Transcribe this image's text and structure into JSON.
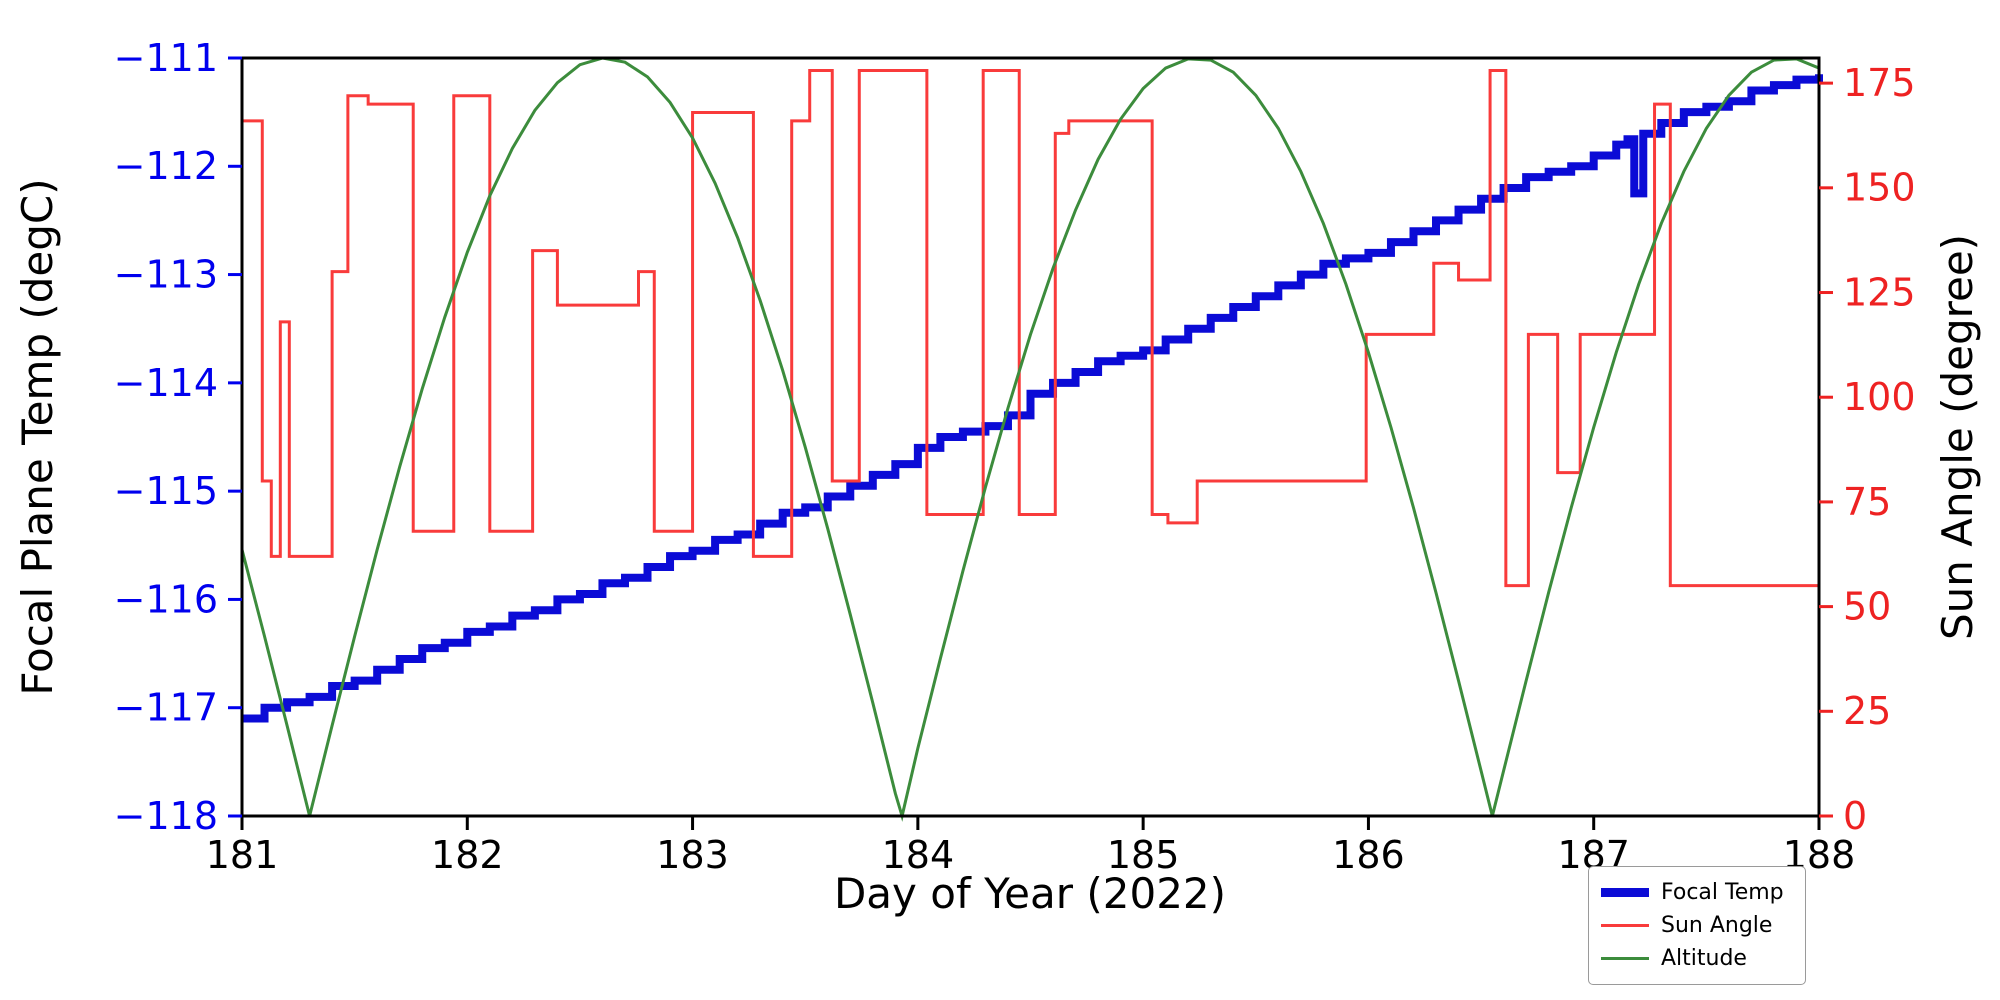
{
  "chart_data": {
    "type": "line",
    "title": "",
    "xlabel": "Day of Year (2022)",
    "ylabel_left": "Focal Plane Temp (degC)",
    "ylabel_right": "Sun Angle (degree)",
    "xlim": [
      181,
      188
    ],
    "ylim_left": [
      -118,
      -111
    ],
    "ylim_right": [
      0,
      181
    ],
    "grid": false,
    "legend_position": "lower right, below plot",
    "axes_colors": {
      "left_ticks": "#0000ee",
      "right_ticks": "#ee2222",
      "bottom_ticks": "#000000",
      "spine": "#000000"
    },
    "xticks": [
      {
        "v": 181,
        "t": "181"
      },
      {
        "v": 182,
        "t": "182"
      },
      {
        "v": 183,
        "t": "183"
      },
      {
        "v": 184,
        "t": "184"
      },
      {
        "v": 185,
        "t": "185"
      },
      {
        "v": 186,
        "t": "186"
      },
      {
        "v": 187,
        "t": "187"
      },
      {
        "v": 188,
        "t": "188"
      }
    ],
    "yticks_left": [
      {
        "v": -118,
        "t": "−118"
      },
      {
        "v": -117,
        "t": "−117"
      },
      {
        "v": -116,
        "t": "−116"
      },
      {
        "v": -115,
        "t": "−115"
      },
      {
        "v": -114,
        "t": "−114"
      },
      {
        "v": -113,
        "t": "−113"
      },
      {
        "v": -112,
        "t": "−112"
      },
      {
        "v": -111,
        "t": "−111"
      }
    ],
    "yticks_right": [
      {
        "v": 0,
        "t": "0"
      },
      {
        "v": 25,
        "t": "25"
      },
      {
        "v": 50,
        "t": "50"
      },
      {
        "v": 75,
        "t": "75"
      },
      {
        "v": 100,
        "t": "100"
      },
      {
        "v": 125,
        "t": "125"
      },
      {
        "v": 150,
        "t": "150"
      },
      {
        "v": 175,
        "t": "175"
      }
    ],
    "series": [
      {
        "name": "Focal Temp",
        "color": "#0b0bd6",
        "axis": "left",
        "style": "step",
        "width": 8,
        "points": [
          [
            181.0,
            -117.1
          ],
          [
            181.1,
            -117.0
          ],
          [
            181.2,
            -116.95
          ],
          [
            181.3,
            -116.9
          ],
          [
            181.4,
            -116.8
          ],
          [
            181.5,
            -116.75
          ],
          [
            181.6,
            -116.65
          ],
          [
            181.7,
            -116.55
          ],
          [
            181.8,
            -116.45
          ],
          [
            181.9,
            -116.4
          ],
          [
            182.0,
            -116.3
          ],
          [
            182.1,
            -116.25
          ],
          [
            182.2,
            -116.15
          ],
          [
            182.3,
            -116.1
          ],
          [
            182.4,
            -116.0
          ],
          [
            182.5,
            -115.95
          ],
          [
            182.6,
            -115.85
          ],
          [
            182.7,
            -115.8
          ],
          [
            182.8,
            -115.7
          ],
          [
            182.9,
            -115.6
          ],
          [
            183.0,
            -115.55
          ],
          [
            183.1,
            -115.45
          ],
          [
            183.2,
            -115.4
          ],
          [
            183.3,
            -115.3
          ],
          [
            183.4,
            -115.2
          ],
          [
            183.5,
            -115.15
          ],
          [
            183.6,
            -115.05
          ],
          [
            183.7,
            -114.95
          ],
          [
            183.8,
            -114.85
          ],
          [
            183.9,
            -114.75
          ],
          [
            184.0,
            -114.6
          ],
          [
            184.1,
            -114.5
          ],
          [
            184.2,
            -114.45
          ],
          [
            184.3,
            -114.4
          ],
          [
            184.4,
            -114.3
          ],
          [
            184.5,
            -114.1
          ],
          [
            184.6,
            -114.0
          ],
          [
            184.7,
            -113.9
          ],
          [
            184.8,
            -113.8
          ],
          [
            184.9,
            -113.75
          ],
          [
            185.0,
            -113.7
          ],
          [
            185.1,
            -113.6
          ],
          [
            185.2,
            -113.5
          ],
          [
            185.3,
            -113.4
          ],
          [
            185.4,
            -113.3
          ],
          [
            185.5,
            -113.2
          ],
          [
            185.6,
            -113.1
          ],
          [
            185.7,
            -113.0
          ],
          [
            185.8,
            -112.9
          ],
          [
            185.9,
            -112.85
          ],
          [
            186.0,
            -112.8
          ],
          [
            186.1,
            -112.7
          ],
          [
            186.2,
            -112.6
          ],
          [
            186.3,
            -112.5
          ],
          [
            186.4,
            -112.4
          ],
          [
            186.5,
            -112.3
          ],
          [
            186.6,
            -112.2
          ],
          [
            186.7,
            -112.1
          ],
          [
            186.8,
            -112.05
          ],
          [
            186.9,
            -112.0
          ],
          [
            187.0,
            -111.9
          ],
          [
            187.1,
            -111.8
          ],
          [
            187.15,
            -111.75
          ],
          [
            187.18,
            -112.25
          ],
          [
            187.22,
            -111.7
          ],
          [
            187.3,
            -111.6
          ],
          [
            187.4,
            -111.5
          ],
          [
            187.5,
            -111.45
          ],
          [
            187.6,
            -111.4
          ],
          [
            187.7,
            -111.3
          ],
          [
            187.8,
            -111.25
          ],
          [
            187.9,
            -111.2
          ],
          [
            188.0,
            -111.15
          ]
        ]
      },
      {
        "name": "Sun Angle",
        "color": "#f93b3b",
        "axis": "right",
        "style": "line",
        "width": 3,
        "points": [
          [
            181.0,
            166
          ],
          [
            181.09,
            166
          ],
          [
            181.09,
            80
          ],
          [
            181.13,
            80
          ],
          [
            181.13,
            62
          ],
          [
            181.17,
            62
          ],
          [
            181.17,
            118
          ],
          [
            181.21,
            118
          ],
          [
            181.21,
            62
          ],
          [
            181.4,
            62
          ],
          [
            181.4,
            130
          ],
          [
            181.47,
            130
          ],
          [
            181.47,
            172
          ],
          [
            181.56,
            172
          ],
          [
            181.56,
            170
          ],
          [
            181.76,
            170
          ],
          [
            181.76,
            68
          ],
          [
            181.94,
            68
          ],
          [
            181.94,
            172
          ],
          [
            182.1,
            172
          ],
          [
            182.1,
            68
          ],
          [
            182.29,
            68
          ],
          [
            182.29,
            135
          ],
          [
            182.4,
            135
          ],
          [
            182.4,
            122
          ],
          [
            182.76,
            122
          ],
          [
            182.76,
            130
          ],
          [
            182.83,
            130
          ],
          [
            182.83,
            68
          ],
          [
            183.0,
            68
          ],
          [
            183.0,
            168
          ],
          [
            183.27,
            168
          ],
          [
            183.27,
            62
          ],
          [
            183.44,
            62
          ],
          [
            183.44,
            166
          ],
          [
            183.52,
            166
          ],
          [
            183.52,
            178
          ],
          [
            183.62,
            178
          ],
          [
            183.62,
            80
          ],
          [
            183.74,
            80
          ],
          [
            183.74,
            178
          ],
          [
            184.04,
            178
          ],
          [
            184.04,
            72
          ],
          [
            184.29,
            72
          ],
          [
            184.29,
            178
          ],
          [
            184.45,
            178
          ],
          [
            184.45,
            72
          ],
          [
            184.61,
            72
          ],
          [
            184.61,
            163
          ],
          [
            184.67,
            163
          ],
          [
            184.67,
            166
          ],
          [
            185.04,
            166
          ],
          [
            185.04,
            72
          ],
          [
            185.11,
            72
          ],
          [
            185.11,
            70
          ],
          [
            185.24,
            70
          ],
          [
            185.24,
            80
          ],
          [
            185.99,
            80
          ],
          [
            185.99,
            115
          ],
          [
            186.29,
            115
          ],
          [
            186.29,
            132
          ],
          [
            186.4,
            132
          ],
          [
            186.4,
            128
          ],
          [
            186.54,
            128
          ],
          [
            186.54,
            178
          ],
          [
            186.61,
            178
          ],
          [
            186.61,
            55
          ],
          [
            186.71,
            55
          ],
          [
            186.71,
            115
          ],
          [
            186.84,
            115
          ],
          [
            186.84,
            82
          ],
          [
            186.94,
            82
          ],
          [
            186.94,
            115
          ],
          [
            187.27,
            115
          ],
          [
            187.27,
            170
          ],
          [
            187.34,
            170
          ],
          [
            187.34,
            55
          ],
          [
            188.0,
            55
          ]
        ]
      },
      {
        "name": "Altitude",
        "color": "#3c8c3c",
        "axis": "right",
        "style": "line",
        "width": 3,
        "points": [
          [
            181.0,
            63.6
          ],
          [
            181.1,
            42.9
          ],
          [
            181.2,
            21.6
          ],
          [
            181.3,
            0.0
          ],
          [
            181.4,
            21.6
          ],
          [
            181.5,
            42.9
          ],
          [
            181.6,
            63.6
          ],
          [
            181.7,
            83.4
          ],
          [
            181.8,
            102.0
          ],
          [
            181.9,
            119.1
          ],
          [
            182.0,
            134.6
          ],
          [
            182.1,
            148.1
          ],
          [
            182.2,
            159.4
          ],
          [
            182.3,
            168.5
          ],
          [
            182.4,
            175.1
          ],
          [
            182.5,
            179.4
          ],
          [
            182.6,
            181.0
          ],
          [
            182.7,
            180.0
          ],
          [
            182.8,
            176.5
          ],
          [
            182.9,
            170.4
          ],
          [
            183.0,
            161.9
          ],
          [
            183.1,
            151.1
          ],
          [
            183.2,
            138.1
          ],
          [
            183.3,
            123.1
          ],
          [
            183.4,
            106.4
          ],
          [
            183.5,
            88.1
          ],
          [
            183.6,
            68.6
          ],
          [
            183.7,
            48.1
          ],
          [
            183.8,
            27.0
          ],
          [
            183.9,
            5.4
          ],
          [
            183.93,
            0.0
          ],
          [
            184.0,
            16.2
          ],
          [
            184.1,
            37.6
          ],
          [
            184.2,
            58.5
          ],
          [
            184.3,
            78.5
          ],
          [
            184.4,
            97.4
          ],
          [
            184.5,
            115.0
          ],
          [
            184.6,
            130.8
          ],
          [
            184.7,
            144.7
          ],
          [
            184.8,
            156.8
          ],
          [
            184.9,
            166.4
          ],
          [
            185.0,
            173.7
          ],
          [
            185.1,
            178.6
          ],
          [
            185.2,
            180.8
          ],
          [
            185.3,
            180.5
          ],
          [
            185.4,
            177.6
          ],
          [
            185.5,
            172.1
          ],
          [
            185.6,
            164.2
          ],
          [
            185.7,
            153.9
          ],
          [
            185.8,
            141.5
          ],
          [
            185.9,
            127.0
          ],
          [
            186.0,
            110.7
          ],
          [
            186.1,
            92.8
          ],
          [
            186.2,
            73.6
          ],
          [
            186.3,
            53.3
          ],
          [
            186.4,
            32.3
          ],
          [
            186.5,
            10.8
          ],
          [
            186.55,
            0.0
          ],
          [
            186.6,
            10.8
          ],
          [
            186.7,
            32.3
          ],
          [
            186.8,
            53.4
          ],
          [
            186.9,
            73.6
          ],
          [
            187.0,
            92.8
          ],
          [
            187.1,
            110.7
          ],
          [
            187.2,
            127.0
          ],
          [
            187.3,
            141.5
          ],
          [
            187.4,
            153.9
          ],
          [
            187.5,
            164.2
          ],
          [
            187.6,
            172.1
          ],
          [
            187.7,
            177.6
          ],
          [
            187.8,
            180.5
          ],
          [
            187.9,
            180.8
          ],
          [
            188.0,
            178.6
          ]
        ]
      }
    ]
  }
}
